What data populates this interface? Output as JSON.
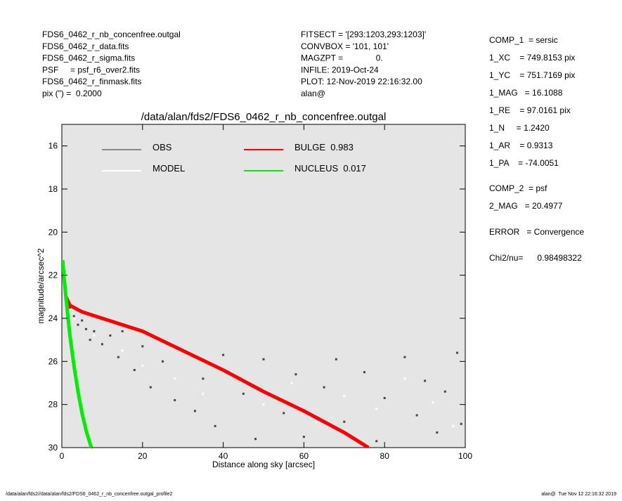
{
  "header": {
    "left": [
      "FDS6_0462_r_nb_concenfree.outgal",
      "FDS6_0462_r_data.fits",
      "FDS6_0462_r_sigma.fits",
      "PSF     = psf_r6_over2.fits",
      "FDS6_0462_r_finmask.fits",
      "pix (\") =  0.2000"
    ],
    "middle": [
      "FITSECT = '[293:1203,293:1203]'",
      "CONVBOX = '101, 101'",
      "MAGZPT =              0.",
      "INFILE: 2019-Oct-24",
      "PLOT: 12-Nov-2019 22:16:32.00",
      "alan@"
    ],
    "right": [
      "COMP_1  = sersic",
      "1_XC    = 749.8153 pix",
      "1_YC    = 751.7169 pix",
      "1_MAG   = 16.1088",
      "1_RE    = 97.0161 pix",
      "1_N     = 1.2420",
      "1_AR    = 0.9313",
      "1_PA    = -74.0051",
      "COMP_2  = psf",
      "2_MAG   = 20.4977",
      "ERROR   = Convergence",
      "Chi2/nu=      0.98498322"
    ]
  },
  "footer": {
    "left": "/data/alan/fds2//data/alan/fds2/FDS6_0462_r_nb_concenfree.outgal_profile2",
    "right": "alan@  Tue Nov 12 22:16:32 2019"
  },
  "chart_data": {
    "type": "scatter",
    "title": "/data/alan/fds2/FDS6_0462_r_nb_concenfree.outgal",
    "x_label": "Distance along sky [arcsec]",
    "y_label": "magnitude/arcsec^2",
    "xlim": [
      0,
      100
    ],
    "xticks": [
      0,
      20,
      40,
      60,
      80,
      100
    ],
    "ylim": [
      15,
      30
    ],
    "yticks": [
      16,
      18,
      20,
      22,
      24,
      26,
      28,
      30
    ],
    "y_inverted": true,
    "background": "#e5e5e5",
    "series": [
      {
        "name": "OBS",
        "color": "#444444",
        "legend_color": "#888888",
        "mode": "points",
        "x": [
          2,
          3,
          4,
          5,
          6,
          7,
          8,
          10,
          12,
          14,
          15,
          18,
          20,
          22,
          25,
          28,
          30,
          33,
          35,
          38,
          40,
          45,
          48,
          50,
          55,
          58,
          60,
          65,
          68,
          70,
          75,
          78,
          80,
          85,
          88,
          90,
          93,
          95,
          98,
          99
        ],
        "values": [
          23.5,
          23.9,
          24.3,
          24.1,
          24.5,
          25,
          24.6,
          25.2,
          24.8,
          25.8,
          24.6,
          26.4,
          25.3,
          27.2,
          26,
          27.8,
          25.5,
          28.3,
          26.8,
          29,
          25.7,
          27.5,
          29.6,
          25.9,
          28.4,
          26.6,
          29.5,
          27.2,
          25.9,
          28.8,
          26.5,
          29.7,
          27.7,
          25.8,
          28.5,
          26.9,
          29.3,
          27.4,
          25.6,
          28.9
        ]
      },
      {
        "name": "MODEL",
        "color": "#ffffff",
        "legend_color": "#ffffff",
        "mode": "points",
        "x": [
          3,
          8,
          15,
          20,
          28,
          35,
          42,
          50,
          57,
          63,
          70,
          78,
          85,
          92,
          97
        ],
        "values": [
          24,
          24.8,
          25.5,
          26.2,
          26.8,
          27.5,
          26.5,
          28,
          27,
          28.8,
          27.6,
          28.2,
          26.8,
          27.9,
          29
        ]
      },
      {
        "name": "BULGE  0.983",
        "color": "#ff0000",
        "legend_color": "#ff0000",
        "mode": "line",
        "x": [
          1,
          2,
          5,
          10,
          20,
          30,
          40,
          50,
          60,
          70,
          76
        ],
        "values": [
          23,
          23.4,
          23.7,
          24,
          24.6,
          25.5,
          26.4,
          27.4,
          28.3,
          29.3,
          30
        ]
      },
      {
        "name": "NUCLEUS  0.017",
        "color": "#00ee00",
        "legend_color": "#00ee00",
        "mode": "line",
        "x": [
          0.2,
          0.5,
          1,
          2,
          3,
          4,
          5,
          6,
          7.3
        ],
        "values": [
          21.3,
          22,
          23,
          24.8,
          26.2,
          27.4,
          28.4,
          29.2,
          30
        ]
      }
    ]
  }
}
